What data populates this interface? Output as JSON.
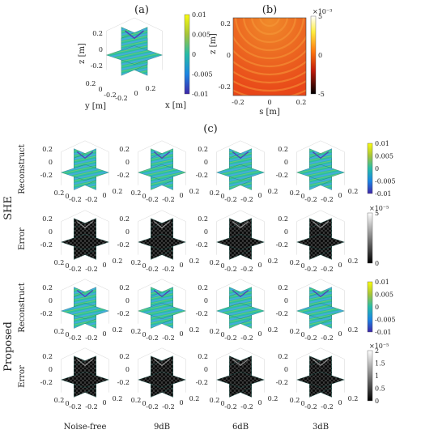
{
  "panel_labels": {
    "a": "(a)",
    "b": "(b)",
    "c": "(c)"
  },
  "panel_a": {
    "zlabel": "z [m]",
    "xlabel": "x [m]",
    "ylabel": "y [m]",
    "z_ticks": [
      "0.2",
      "0",
      "-0.2"
    ],
    "x_ticks": [
      "-0.2",
      "0",
      "0.2"
    ],
    "y_ticks": [
      "0.2",
      "0",
      "-0.2"
    ],
    "colorbar_ticks": [
      "0.01",
      "0.005",
      "0",
      "-0.005",
      "-0.01"
    ]
  },
  "panel_b": {
    "xlabel": "s [m]",
    "ylabel": "z [m]",
    "x_ticks": [
      "-0.2",
      "0",
      "0.2"
    ],
    "y_ticks": [
      "0.2",
      "0",
      "-0.2"
    ],
    "colorbar_exp": "×10⁻³",
    "colorbar_ticks": [
      "5",
      "0",
      "-5"
    ]
  },
  "rows": [
    {
      "group": "SHE",
      "label": "Reconstruct"
    },
    {
      "group": "SHE",
      "label": "Error"
    },
    {
      "group": "Proposed",
      "label": "Reconstruct"
    },
    {
      "group": "Proposed",
      "label": "Error"
    }
  ],
  "groups": [
    "SHE",
    "Proposed"
  ],
  "columns": [
    "Noise-free",
    "9dB",
    "6dB",
    "3dB"
  ],
  "cell_ticks": {
    "z": [
      "0.2",
      "0",
      "-0.2"
    ],
    "x": [
      "-0.2",
      "0",
      "0.2"
    ],
    "y": [
      "0.2",
      "0",
      "-0.2"
    ]
  },
  "row_colorbars": [
    {
      "exp": "",
      "ticks": [
        "0.01",
        "0.005",
        "0",
        "-0.005",
        "-0.01"
      ],
      "scheme": "parula"
    },
    {
      "exp": "×10⁻⁵",
      "ticks": [
        "5",
        "0"
      ],
      "scheme": "gray"
    },
    {
      "exp": "",
      "ticks": [
        "0.01",
        "0.005",
        "0",
        "-0.005",
        "-0.01"
      ],
      "scheme": "parula"
    },
    {
      "exp": "×10⁻⁵",
      "ticks": [
        "2",
        "1.5",
        "1",
        "0.5",
        "0"
      ],
      "scheme": "gray"
    }
  ],
  "colors": {
    "parula_top": "#f9fb0e",
    "parula_mid": "#26bca8",
    "parula_bottom": "#3e26a8",
    "field_red": "#ea3e1a",
    "dark": "#111111"
  }
}
